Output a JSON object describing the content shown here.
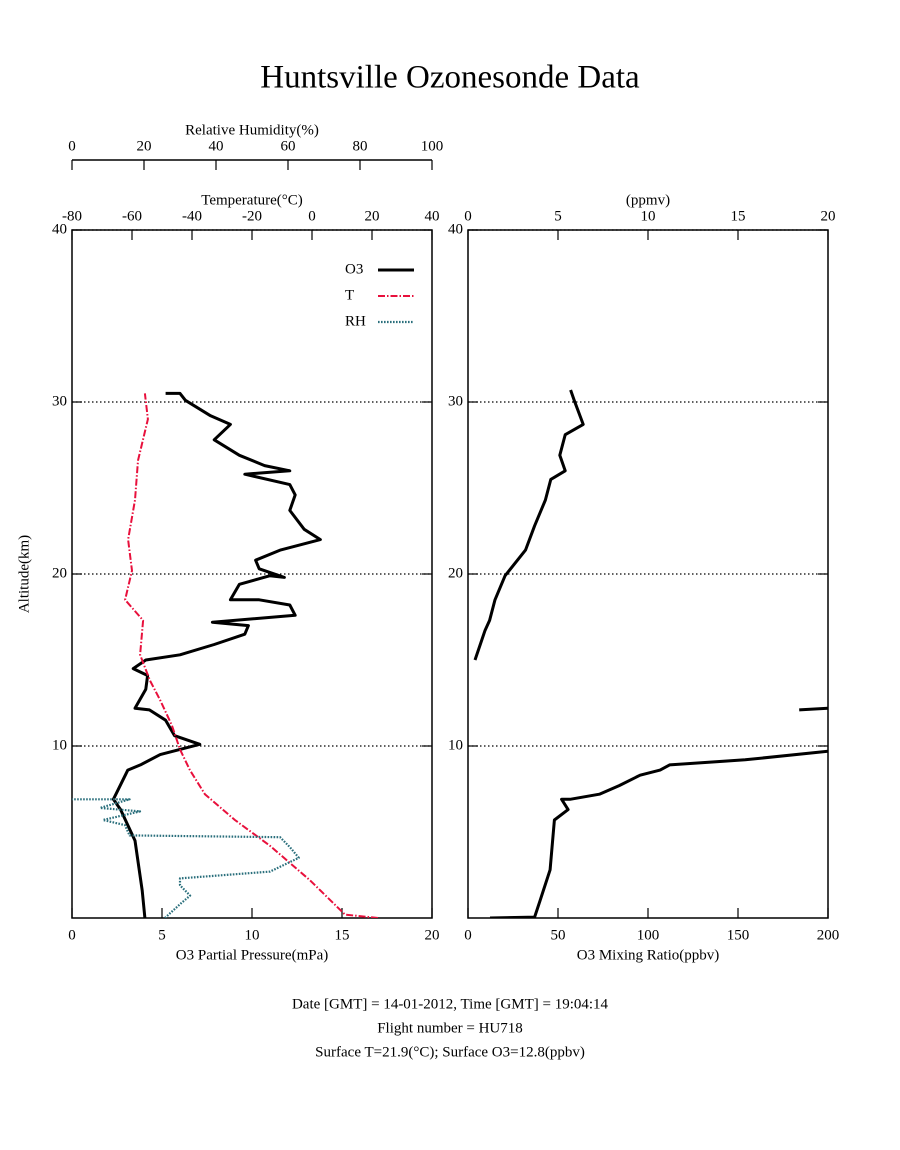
{
  "title": "Huntsville Ozonesonde Data",
  "chart_data": [
    {
      "type": "line",
      "ylabel": "Altitude(km)",
      "ylim": [
        0,
        40
      ],
      "yticks": [
        10,
        20,
        30,
        40
      ],
      "grid": true,
      "xlabel": "O3 Partial Pressure(mPa)",
      "xlim": [
        0,
        20
      ],
      "xticks": [
        0,
        5,
        10,
        15,
        20
      ],
      "x2label": "Temperature(°C)",
      "x2lim": [
        -80,
        40
      ],
      "x2ticks": [
        -80,
        -60,
        -40,
        -20,
        0,
        20,
        40
      ],
      "x3label": "Relative Humidity(%)",
      "x3lim": [
        0,
        100
      ],
      "x3ticks": [
        0,
        20,
        40,
        60,
        80,
        100
      ],
      "legend": "top-right",
      "series": [
        {
          "name": "O3",
          "color": "#000000",
          "axis": "x",
          "linestyle": "solid",
          "values": [
            4.05,
            3.9,
            3.5,
            2.7,
            2.3,
            3.1,
            3.8,
            4.9,
            7.1,
            5.7,
            5.2,
            4.3,
            3.5,
            4.1,
            4.2,
            3.4,
            4.1,
            6.0,
            7.9,
            9.6,
            9.8,
            7.8,
            12.4,
            12.1,
            10.4,
            8.8,
            9.3,
            11.0,
            11.8,
            10.4,
            10.2,
            11.6,
            13.8,
            12.9,
            12.1,
            12.4,
            12.1,
            9.6,
            12.1,
            10.7,
            9.3,
            7.9,
            8.8,
            7.7,
            6.3,
            6.0,
            5.2
          ],
          "altitude": [
            0,
            1.6,
            4.5,
            6.3,
            6.9,
            8.6,
            8.9,
            9.5,
            10.1,
            10.6,
            11.5,
            12.1,
            12.2,
            13.3,
            14.1,
            14.5,
            15.0,
            15.3,
            15.9,
            16.5,
            17.0,
            17.2,
            17.6,
            18.2,
            18.5,
            18.5,
            19.4,
            19.9,
            19.8,
            20.3,
            20.8,
            21.4,
            22.0,
            22.6,
            23.7,
            24.6,
            25.2,
            25.8,
            26.0,
            26.3,
            26.9,
            27.8,
            28.7,
            29.2,
            30.1,
            30.5,
            30.5
          ]
        },
        {
          "name": "T",
          "color": "#e8103c",
          "axis": "x2",
          "linestyle": "dashdot",
          "values": [
            22.0,
            11,
            -0.7,
            -14,
            -25.7,
            -35.7,
            -40.7,
            -44,
            -46.7,
            -50.7,
            -54,
            -57.3,
            -56.3,
            -62.3,
            -60,
            -61.3,
            -59,
            -58,
            -54.7,
            -55.7
          ],
          "altitude": [
            0,
            0.2,
            2.2,
            4.2,
            5.7,
            7.2,
            8.6,
            9.8,
            11.2,
            12.7,
            13.8,
            15.3,
            17.3,
            18.5,
            20.2,
            22.0,
            24.3,
            26.6,
            29.0,
            30.5
          ]
        },
        {
          "name": "RH",
          "color": "#2a6f7c",
          "axis": "x3",
          "linestyle": "dotted",
          "values": [
            25.8,
            30,
            32.8,
            30,
            30,
            55,
            63,
            60.6,
            57.8,
            16,
            14.7,
            8.6,
            18.9,
            7.8,
            16,
            0
          ],
          "altitude": [
            0,
            0.8,
            1.3,
            1.9,
            2.3,
            2.7,
            3.5,
            4.1,
            4.7,
            4.8,
            5.4,
            5.7,
            6.2,
            6.4,
            6.9,
            6.9
          ]
        }
      ]
    },
    {
      "type": "line",
      "ylim": [
        0,
        40
      ],
      "yticks": [
        10,
        20,
        30,
        40
      ],
      "grid": true,
      "xlabel": "O3 Mixing Ratio(ppbv)",
      "xlim": [
        0,
        200
      ],
      "xticks": [
        0,
        50,
        100,
        150,
        200
      ],
      "x2label": "(ppmv)",
      "x2lim": [
        0,
        20
      ],
      "x2ticks": [
        0,
        5,
        10,
        15,
        20
      ],
      "series": [
        {
          "color": "#000000",
          "axis": "x",
          "linestyle": "solid",
          "values": [
            12.2,
            37,
            40,
            45.6,
            48,
            55.6,
            52,
            56.7,
            73,
            84,
            95.6,
            106.7,
            112,
            154,
            200,
            null,
            184,
            200
          ],
          "altitude": [
            0,
            0.05,
            1.0,
            2.8,
            5.7,
            6.3,
            6.9,
            6.9,
            7.2,
            7.7,
            8.3,
            8.6,
            8.9,
            9.2,
            9.7,
            null,
            12.1,
            12.2
          ]
        },
        {
          "color": "#000000",
          "axis": "x2",
          "linestyle": "solid",
          "values": [
            0.39,
            0.94,
            1.2,
            1.5,
            2.06,
            3.2,
            3.7,
            4.3,
            4.6,
            5.4,
            5.1,
            5.4,
            6.4,
            5.9,
            5.7
          ],
          "altitude": [
            15.0,
            16.7,
            17.3,
            18.5,
            19.9,
            21.4,
            22.8,
            24.3,
            25.5,
            26.0,
            26.9,
            28.1,
            28.7,
            30.1,
            30.7
          ]
        }
      ]
    }
  ],
  "footer": [
    "Date [GMT] = 14-01-2012,  Time [GMT] = 19:04:14",
    "Flight number = HU718",
    "Surface T=21.9(°C); Surface O3=12.8(ppbv)"
  ]
}
